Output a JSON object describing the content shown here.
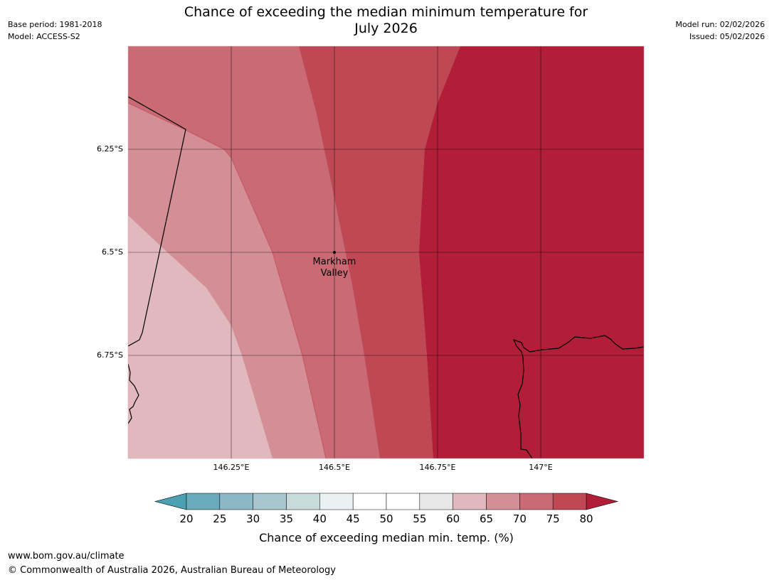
{
  "header": {
    "title_line1": "Chance of exceeding the median minimum temperature for",
    "title_line2": "July 2026",
    "base_period": "Base period: 1981-2018",
    "model": "Model: ACCESS-S2",
    "model_run": "Model run: 02/02/2026",
    "issued": "Issued: 05/02/2026"
  },
  "map": {
    "longitude_labels": [
      "146.25°E",
      "146.5°E",
      "146.75°E",
      "147°E"
    ],
    "latitude_labels": [
      "6.25°S",
      "6.5°S",
      "6.75°S"
    ],
    "place": {
      "name_line1": "Markham",
      "name_line2": "Valley"
    },
    "zone_colors": {
      "c60_65": "#e0b8bd",
      "c65_70": "#d48e96",
      "c70_75": "#c96a74",
      "c75_80": "#bf4855",
      "c80_plus": "#b01e38"
    }
  },
  "colorbar": {
    "ticks": [
      "20",
      "25",
      "30",
      "35",
      "40",
      "45",
      "50",
      "55",
      "60",
      "65",
      "70",
      "75",
      "80"
    ],
    "colors": [
      "#69aabb",
      "#8cb7c4",
      "#a8c6cd",
      "#c9dadd",
      "#eaf1f2",
      "#ffffff",
      "#ffffff",
      "#e7e7e7",
      "#e0b8bd",
      "#d48e96",
      "#c96a74",
      "#bf4855"
    ],
    "under_color": "#4ba0b2",
    "over_color": "#b01e38",
    "label": "Chance of exceeding median min. temp. (%)"
  },
  "footer": {
    "url": "www.bom.gov.au/climate",
    "copyright": "© Commonwealth of Australia 2026, Australian Bureau of Meteorology"
  }
}
